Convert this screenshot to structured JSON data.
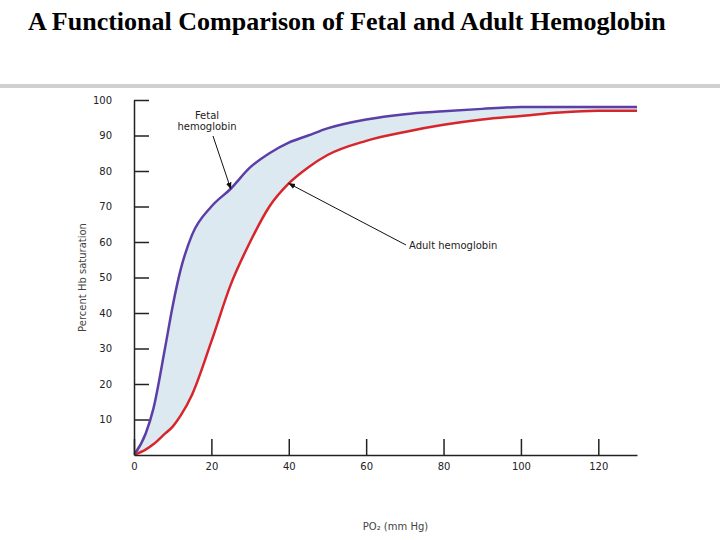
{
  "chart_data": {
    "type": "line",
    "title": "A Functional Comparison of Fetal and Adult Hemoglobin",
    "x_label": "PO₂ (mm Hg)",
    "y_label": "Percent Hb saturation",
    "x": [
      0,
      3,
      5,
      8,
      10,
      12,
      15,
      20,
      25,
      30,
      35,
      40,
      45,
      50,
      60,
      70,
      80,
      90,
      100,
      110,
      120,
      130
    ],
    "series": [
      {
        "name": "Fetal hemoglobin",
        "color": "#5b3fa6",
        "values": [
          0,
          6,
          13,
          30,
          42,
          52,
          62,
          70,
          75,
          81,
          85,
          88,
          90,
          92,
          94.5,
          96,
          96.8,
          97.5,
          98,
          98,
          98,
          98
        ]
      },
      {
        "name": "Adult hemoglobin",
        "color": "#d7262b",
        "values": [
          0,
          1.5,
          3,
          6,
          8,
          11,
          17,
          32,
          48,
          60,
          70,
          76.5,
          81,
          84.5,
          88.5,
          91,
          93,
          94.5,
          95.5,
          96.5,
          97,
          97
        ]
      }
    ],
    "xlim": [
      0,
      130
    ],
    "xticks": [
      0,
      20,
      40,
      60,
      80,
      100,
      120
    ],
    "ylim": [
      0,
      100
    ],
    "yticks": [
      10,
      20,
      30,
      40,
      50,
      60,
      70,
      80,
      90,
      100
    ],
    "grid": false
  }
}
